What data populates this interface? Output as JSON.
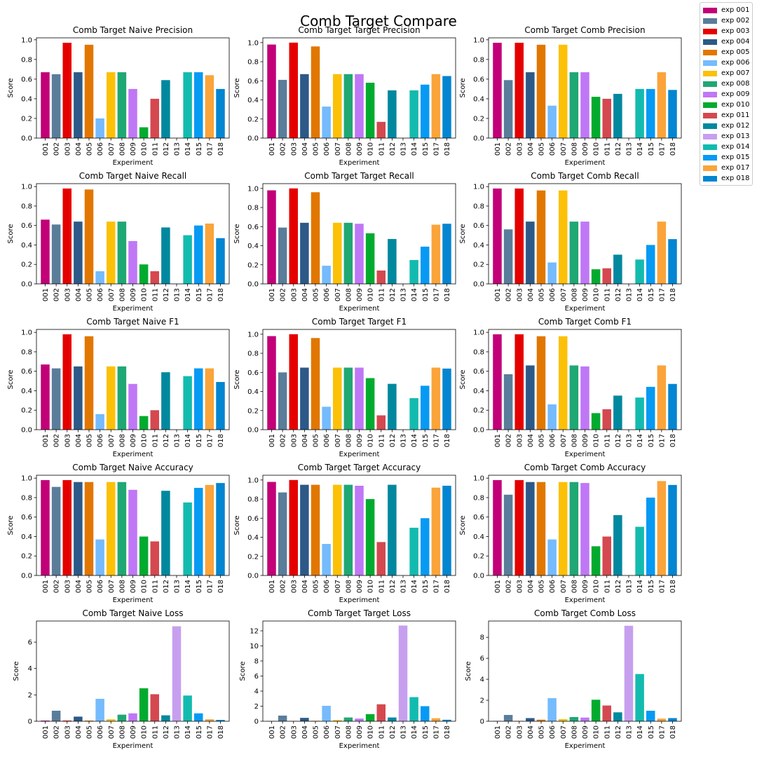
{
  "figure": {
    "suptitle": "Comb Target Compare"
  },
  "legend": [
    {
      "label": "exp 001",
      "color": "#c20078"
    },
    {
      "label": "exp 002",
      "color": "#5a7d9a"
    },
    {
      "label": "exp 003",
      "color": "#e50000"
    },
    {
      "label": "exp 004",
      "color": "#2c5987"
    },
    {
      "label": "exp 005",
      "color": "#e17701"
    },
    {
      "label": "exp 006",
      "color": "#75bbfd"
    },
    {
      "label": "exp 007",
      "color": "#fcc006"
    },
    {
      "label": "exp 008",
      "color": "#1fa774"
    },
    {
      "label": "exp 009",
      "color": "#bf77f6"
    },
    {
      "label": "exp 010",
      "color": "#02ab2e"
    },
    {
      "label": "exp 011",
      "color": "#d5484f"
    },
    {
      "label": "exp 012",
      "color": "#01889f"
    },
    {
      "label": "exp 013",
      "color": "#c79fef"
    },
    {
      "label": "exp 014",
      "color": "#13bbaf"
    },
    {
      "label": "exp 015",
      "color": "#069af3"
    },
    {
      "label": "exp 017",
      "color": "#faa43a"
    },
    {
      "label": "exp 018",
      "color": "#0485d1"
    }
  ],
  "chart_data": [
    {
      "type": "bar",
      "title": "Comb Target Naive Precision",
      "xlabel": "Experiment",
      "ylabel": "Score",
      "ylim": [
        0,
        1.02
      ],
      "yticks": [
        0,
        0.2,
        0.4,
        0.6,
        0.8,
        1.0
      ],
      "categories": [
        "001",
        "002",
        "003",
        "004",
        "005",
        "006",
        "007",
        "008",
        "009",
        "010",
        "011",
        "012",
        "013",
        "014",
        "015",
        "017",
        "018"
      ],
      "values": [
        0.67,
        0.65,
        0.97,
        0.67,
        0.95,
        0.2,
        0.67,
        0.67,
        0.5,
        0.11,
        0.4,
        0.59,
        0,
        0.67,
        0.67,
        0.64,
        0.5
      ]
    },
    {
      "type": "bar",
      "title": "Comb Target Target Precision",
      "xlabel": "Experiment",
      "ylabel": "Score",
      "ylim": [
        0,
        1.05
      ],
      "yticks": [
        0,
        0.2,
        0.4,
        0.6,
        0.8,
        1.0
      ],
      "categories": [
        "001",
        "002",
        "003",
        "004",
        "005",
        "006",
        "007",
        "008",
        "009",
        "010",
        "011",
        "012",
        "013",
        "014",
        "015",
        "017",
        "018"
      ],
      "values": [
        0.98,
        0.61,
        1.0,
        0.67,
        0.96,
        0.33,
        0.67,
        0.67,
        0.67,
        0.58,
        0.17,
        0.5,
        0,
        0.5,
        0.56,
        0.67,
        0.65
      ]
    },
    {
      "type": "bar",
      "title": "Comb Target Comb Precision",
      "xlabel": "Experiment",
      "ylabel": "Score",
      "ylim": [
        0,
        1.02
      ],
      "yticks": [
        0,
        0.2,
        0.4,
        0.6,
        0.8,
        1.0
      ],
      "categories": [
        "001",
        "002",
        "003",
        "004",
        "005",
        "006",
        "007",
        "008",
        "009",
        "010",
        "011",
        "012",
        "013",
        "014",
        "015",
        "017",
        "018"
      ],
      "values": [
        0.97,
        0.59,
        0.97,
        0.67,
        0.95,
        0.33,
        0.95,
        0.67,
        0.67,
        0.42,
        0.4,
        0.45,
        0,
        0.5,
        0.5,
        0.67,
        0.49
      ]
    },
    {
      "type": "bar",
      "title": "Comb Target Naive Recall",
      "xlabel": "Experiment",
      "ylabel": "Score",
      "ylim": [
        0,
        1.03
      ],
      "yticks": [
        0,
        0.2,
        0.4,
        0.6,
        0.8,
        1.0
      ],
      "categories": [
        "001",
        "002",
        "003",
        "004",
        "005",
        "006",
        "007",
        "008",
        "009",
        "010",
        "011",
        "012",
        "013",
        "014",
        "015",
        "017",
        "018"
      ],
      "values": [
        0.66,
        0.61,
        0.98,
        0.64,
        0.97,
        0.13,
        0.64,
        0.64,
        0.44,
        0.2,
        0.13,
        0.58,
        0,
        0.5,
        0.6,
        0.62,
        0.47
      ]
    },
    {
      "type": "bar",
      "title": "Comb Target Target Recall",
      "xlabel": "Experiment",
      "ylabel": "Score",
      "ylim": [
        0,
        1.05
      ],
      "yticks": [
        0,
        0.2,
        0.4,
        0.6,
        0.8,
        1.0
      ],
      "categories": [
        "001",
        "002",
        "003",
        "004",
        "005",
        "006",
        "007",
        "008",
        "009",
        "010",
        "011",
        "012",
        "013",
        "014",
        "015",
        "017",
        "018"
      ],
      "values": [
        0.98,
        0.59,
        1.0,
        0.64,
        0.96,
        0.19,
        0.64,
        0.64,
        0.63,
        0.53,
        0.14,
        0.47,
        0,
        0.25,
        0.39,
        0.62,
        0.63
      ]
    },
    {
      "type": "bar",
      "title": "Comb Target Comb Recall",
      "xlabel": "Experiment",
      "ylabel": "Score",
      "ylim": [
        0,
        1.03
      ],
      "yticks": [
        0,
        0.2,
        0.4,
        0.6,
        0.8,
        1.0
      ],
      "categories": [
        "001",
        "002",
        "003",
        "004",
        "005",
        "006",
        "007",
        "008",
        "009",
        "010",
        "011",
        "012",
        "013",
        "014",
        "015",
        "017",
        "018"
      ],
      "values": [
        0.98,
        0.56,
        0.98,
        0.64,
        0.96,
        0.22,
        0.96,
        0.64,
        0.64,
        0.15,
        0.16,
        0.3,
        0,
        0.25,
        0.4,
        0.64,
        0.46
      ]
    },
    {
      "type": "bar",
      "title": "Comb Target Naive F1",
      "xlabel": "Experiment",
      "ylabel": "Score",
      "ylim": [
        0,
        1.03
      ],
      "yticks": [
        0,
        0.2,
        0.4,
        0.6,
        0.8,
        1.0
      ],
      "categories": [
        "001",
        "002",
        "003",
        "004",
        "005",
        "006",
        "007",
        "008",
        "009",
        "010",
        "011",
        "012",
        "013",
        "014",
        "015",
        "017",
        "018"
      ],
      "values": [
        0.67,
        0.63,
        0.98,
        0.65,
        0.96,
        0.16,
        0.65,
        0.65,
        0.47,
        0.14,
        0.2,
        0.59,
        0,
        0.55,
        0.63,
        0.63,
        0.49
      ]
    },
    {
      "type": "bar",
      "title": "Comb Target Target F1",
      "xlabel": "Experiment",
      "ylabel": "Score",
      "ylim": [
        0,
        1.05
      ],
      "yticks": [
        0,
        0.2,
        0.4,
        0.6,
        0.8,
        1.0
      ],
      "categories": [
        "001",
        "002",
        "003",
        "004",
        "005",
        "006",
        "007",
        "008",
        "009",
        "010",
        "011",
        "012",
        "013",
        "014",
        "015",
        "017",
        "018"
      ],
      "values": [
        0.98,
        0.6,
        1.0,
        0.65,
        0.96,
        0.24,
        0.65,
        0.65,
        0.65,
        0.54,
        0.15,
        0.48,
        0,
        0.33,
        0.46,
        0.65,
        0.64
      ]
    },
    {
      "type": "bar",
      "title": "Comb Target Comb F1",
      "xlabel": "Experiment",
      "ylabel": "Score",
      "ylim": [
        0,
        1.03
      ],
      "yticks": [
        0,
        0.2,
        0.4,
        0.6,
        0.8,
        1.0
      ],
      "categories": [
        "001",
        "002",
        "003",
        "004",
        "005",
        "006",
        "007",
        "008",
        "009",
        "010",
        "011",
        "012",
        "013",
        "014",
        "015",
        "017",
        "018"
      ],
      "values": [
        0.98,
        0.57,
        0.98,
        0.66,
        0.96,
        0.26,
        0.96,
        0.66,
        0.65,
        0.17,
        0.21,
        0.35,
        0,
        0.33,
        0.44,
        0.66,
        0.47
      ]
    },
    {
      "type": "bar",
      "title": "Comb Target Naive Accuracy",
      "xlabel": "Experiment",
      "ylabel": "Score",
      "ylim": [
        0,
        1.03
      ],
      "yticks": [
        0,
        0.2,
        0.4,
        0.6,
        0.8,
        1.0
      ],
      "categories": [
        "001",
        "002",
        "003",
        "004",
        "005",
        "006",
        "007",
        "008",
        "009",
        "010",
        "011",
        "012",
        "013",
        "014",
        "015",
        "017",
        "018"
      ],
      "values": [
        0.98,
        0.91,
        0.98,
        0.96,
        0.96,
        0.37,
        0.96,
        0.96,
        0.88,
        0.4,
        0.35,
        0.87,
        0,
        0.75,
        0.9,
        0.93,
        0.95
      ]
    },
    {
      "type": "bar",
      "title": "Comb Target Target Accuracy",
      "xlabel": "Experiment",
      "ylabel": "Score",
      "ylim": [
        0,
        1.05
      ],
      "yticks": [
        0,
        0.2,
        0.4,
        0.6,
        0.8,
        1.0
      ],
      "categories": [
        "001",
        "002",
        "003",
        "004",
        "005",
        "006",
        "007",
        "008",
        "009",
        "010",
        "011",
        "012",
        "013",
        "014",
        "015",
        "017",
        "018"
      ],
      "values": [
        0.98,
        0.87,
        1.0,
        0.95,
        0.95,
        0.33,
        0.95,
        0.95,
        0.94,
        0.8,
        0.35,
        0.95,
        0,
        0.5,
        0.6,
        0.92,
        0.94
      ]
    },
    {
      "type": "bar",
      "title": "Comb Target Comb Accuracy",
      "xlabel": "Experiment",
      "ylabel": "Score",
      "ylim": [
        0,
        1.03
      ],
      "yticks": [
        0,
        0.2,
        0.4,
        0.6,
        0.8,
        1.0
      ],
      "categories": [
        "001",
        "002",
        "003",
        "004",
        "005",
        "006",
        "007",
        "008",
        "009",
        "010",
        "011",
        "012",
        "013",
        "014",
        "015",
        "017",
        "018"
      ],
      "values": [
        0.98,
        0.83,
        0.98,
        0.96,
        0.96,
        0.37,
        0.96,
        0.96,
        0.95,
        0.3,
        0.4,
        0.62,
        0,
        0.5,
        0.8,
        0.97,
        0.93
      ]
    },
    {
      "type": "bar",
      "title": "Comb Target Naive Loss",
      "xlabel": "Experiment",
      "ylabel": "Score",
      "ylim": [
        0,
        7.6
      ],
      "yticks": [
        0,
        2,
        4,
        6
      ],
      "categories": [
        "001",
        "002",
        "003",
        "004",
        "005",
        "006",
        "007",
        "008",
        "009",
        "010",
        "011",
        "012",
        "013",
        "014",
        "015",
        "017",
        "018"
      ],
      "values": [
        0.05,
        0.8,
        0.05,
        0.35,
        0.05,
        1.7,
        0.15,
        0.5,
        0.6,
        2.5,
        2.05,
        0.45,
        7.2,
        1.95,
        0.6,
        0.15,
        0.1
      ]
    },
    {
      "type": "bar",
      "title": "Comb Target Target Loss",
      "xlabel": "Experiment",
      "ylabel": "Score",
      "ylim": [
        0,
        13.3
      ],
      "yticks": [
        0,
        2,
        4,
        6,
        8,
        10,
        12
      ],
      "categories": [
        "001",
        "002",
        "003",
        "004",
        "005",
        "006",
        "007",
        "008",
        "009",
        "010",
        "011",
        "012",
        "013",
        "014",
        "015",
        "017",
        "018"
      ],
      "values": [
        0.03,
        0.75,
        0.03,
        0.45,
        0.06,
        2.05,
        0.15,
        0.5,
        0.35,
        0.95,
        2.25,
        0.5,
        12.7,
        3.2,
        2.0,
        0.4,
        0.2
      ]
    },
    {
      "type": "bar",
      "title": "Comb Target Comb Loss",
      "xlabel": "Experiment",
      "ylabel": "Score",
      "ylim": [
        0,
        9.55
      ],
      "yticks": [
        0,
        2,
        4,
        6,
        8
      ],
      "categories": [
        "001",
        "002",
        "003",
        "004",
        "005",
        "006",
        "007",
        "008",
        "009",
        "010",
        "011",
        "012",
        "013",
        "014",
        "015",
        "017",
        "018"
      ],
      "values": [
        0.03,
        0.6,
        0.03,
        0.3,
        0.15,
        2.2,
        0.2,
        0.4,
        0.35,
        2.05,
        1.5,
        0.85,
        9.1,
        4.5,
        1.0,
        0.25,
        0.3
      ]
    }
  ]
}
